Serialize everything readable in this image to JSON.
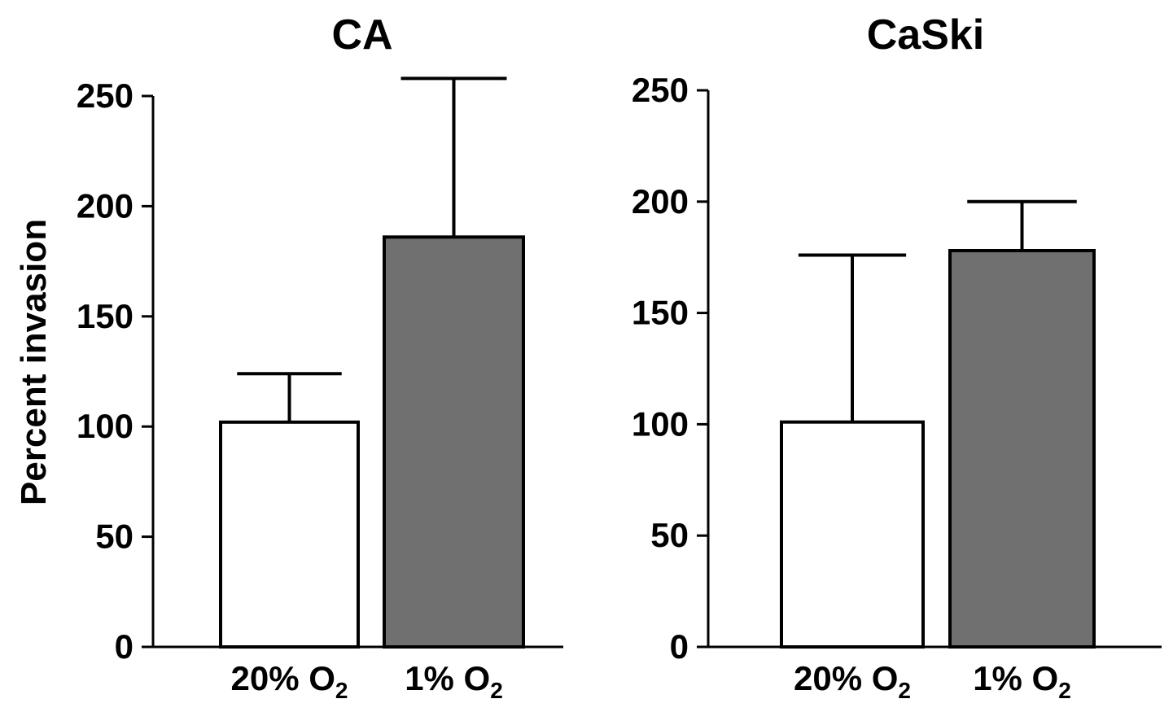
{
  "ylabel": "Percent invasion",
  "chart_data": [
    {
      "type": "bar",
      "title": "CA",
      "ylabel": "Percent invasion",
      "ylim": [
        0,
        250
      ],
      "yticks": [
        0,
        50,
        100,
        150,
        200,
        250
      ],
      "categories": [
        {
          "text": "20% O",
          "sub": "2"
        },
        {
          "text": "1% O",
          "sub": "2"
        }
      ],
      "values": [
        102,
        186
      ],
      "error_upper": [
        124,
        258
      ],
      "bar_colors": [
        "#ffffff",
        "#707070"
      ],
      "grid": false
    },
    {
      "type": "bar",
      "title": "CaSki",
      "ylim": [
        0,
        250
      ],
      "yticks": [
        0,
        50,
        100,
        150,
        200,
        250
      ],
      "categories": [
        {
          "text": "20% O",
          "sub": "2"
        },
        {
          "text": "1% O",
          "sub": "2"
        }
      ],
      "values": [
        101,
        178
      ],
      "error_upper": [
        176,
        200
      ],
      "bar_colors": [
        "#ffffff",
        "#707070"
      ],
      "grid": false
    }
  ]
}
